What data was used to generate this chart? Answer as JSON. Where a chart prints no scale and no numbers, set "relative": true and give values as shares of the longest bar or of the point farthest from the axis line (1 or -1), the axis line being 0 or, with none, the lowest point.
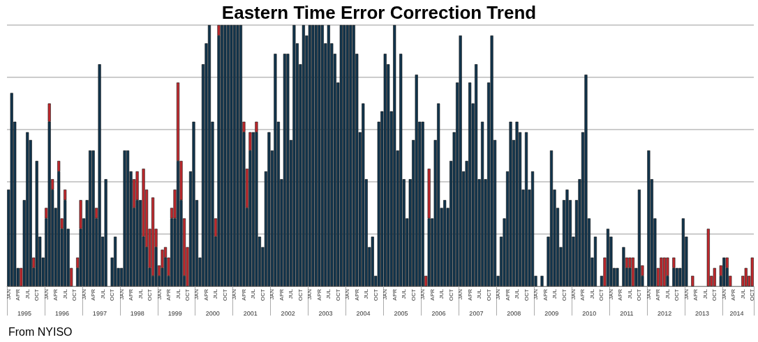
{
  "chart_data": {
    "type": "bar",
    "title": "Eastern Time Error Correction Trend",
    "relative": true,
    "stacked": true,
    "grid": "y",
    "annotations": [
      "From NYISO",
      "1995",
      "1996",
      "1997",
      "1998",
      "1999",
      "2000",
      "2001",
      "2002",
      "2003",
      "2004",
      "2005",
      "2006",
      "2007",
      "2008",
      "2009",
      "2010",
      "2011",
      "2012",
      "2013",
      "2014"
    ],
    "categories": [
      "JAN",
      null,
      null,
      "APR",
      null,
      null,
      "JUL",
      null,
      null,
      "OCT",
      null,
      null,
      "JAN",
      null,
      null,
      "APR",
      null,
      null,
      "JUL",
      null,
      null,
      "OCT",
      null,
      null,
      "JAN",
      null,
      null,
      "APR",
      null,
      null,
      "JUL",
      null,
      null,
      "OCT",
      null,
      null,
      "JAN",
      null,
      null,
      "APR",
      null,
      null,
      "JUL",
      null,
      null,
      "OCT",
      null,
      null,
      "JAN",
      null,
      null,
      "APR",
      null,
      null,
      "JUL",
      null,
      null,
      "OCT",
      null,
      null,
      "JAN",
      null,
      null,
      "APR",
      null,
      null,
      "JUL",
      null,
      null,
      "OCT",
      null,
      null,
      "JAN",
      null,
      null,
      "APR",
      null,
      null,
      "JUL",
      null,
      null,
      "OCT",
      null,
      null,
      "JAN",
      null,
      null,
      "APR",
      null,
      null,
      "JUL",
      null,
      null,
      "OCT",
      null,
      null,
      "JAN",
      null,
      null,
      "APR",
      null,
      null,
      "JUL",
      null,
      null,
      "OCT",
      null,
      null,
      "JAN",
      null,
      null,
      "APR",
      null,
      null,
      "JUL",
      null,
      null,
      "OCT",
      null,
      null,
      "JAN",
      null,
      null,
      "APR",
      null,
      null,
      "JUL",
      null,
      null,
      "OCT",
      null,
      null,
      "JAN",
      null,
      null,
      "APR",
      null,
      null,
      "JUL",
      null,
      null,
      "OCT",
      null,
      null,
      "JAN",
      null,
      null,
      "APR",
      null,
      null,
      "JUL",
      null,
      null,
      "OCT",
      null,
      null,
      "JAN",
      null,
      null,
      "APR",
      null,
      null,
      "JUL",
      null,
      null,
      "OCT",
      null,
      null,
      "JAN",
      null,
      null,
      "APR",
      null,
      null,
      "JUL",
      null,
      null,
      "OCT",
      null,
      null,
      "JAN",
      null,
      null,
      "APR",
      null,
      null,
      "JUL",
      null,
      null,
      "OCT",
      null,
      null,
      "JAN",
      null,
      null,
      "APR",
      null,
      null,
      "JUL",
      null,
      null,
      "OCT",
      null,
      null,
      "JAN",
      null,
      null,
      "APR",
      null,
      null,
      "JUL",
      null,
      null,
      "OCT",
      null,
      null,
      "JAN",
      null,
      null,
      "APR",
      null,
      null,
      "JUL",
      null,
      null,
      "OCT",
      null,
      null,
      "JAN",
      null,
      null,
      "APR",
      null,
      null,
      "JUL",
      null,
      null,
      "OCT"
    ],
    "series": [
      {
        "color": "#12354d",
        "values": [
          0.37,
          0.74,
          0.63,
          0.07,
          0,
          0.33,
          0.59,
          0.56,
          0.07,
          0.48,
          0.19,
          0.11,
          0.26,
          0.63,
          0.37,
          0.3,
          0.44,
          0.22,
          0.33,
          0.22,
          0,
          0,
          0.07,
          0.22,
          0.26,
          0.33,
          0.52,
          0.52,
          0.26,
          0.85,
          0.19,
          0.41,
          0,
          0.11,
          0.19,
          0.07,
          0.07,
          0.52,
          0.52,
          0.44,
          0.3,
          0.33,
          0.33,
          0.19,
          0.15,
          0.07,
          0.04,
          0.15,
          0.04,
          0.07,
          0.11,
          0.04,
          0.26,
          0.26,
          0.48,
          0.33,
          0.04,
          0,
          0.44,
          0.63,
          0.33,
          0.11,
          0.85,
          0.93,
          1,
          0.63,
          0.19,
          0.96,
          1,
          1,
          1,
          1,
          1,
          1,
          1,
          0.59,
          0.3,
          0.52,
          0.59,
          0.59,
          0.19,
          0.15,
          0.44,
          0.59,
          0.52,
          0.89,
          0.63,
          0.41,
          0.89,
          0.89,
          0.56,
          1,
          0.93,
          0.85,
          1,
          0.96,
          1,
          1,
          1,
          1,
          1,
          0.93,
          1,
          0.93,
          0.89,
          0.78,
          1,
          1,
          1,
          1,
          1,
          0.89,
          0.59,
          0.7,
          0.41,
          0.15,
          0.19,
          0.04,
          0.63,
          0.67,
          0.89,
          0.85,
          0.67,
          1,
          0.52,
          0.89,
          0.41,
          0.26,
          0.41,
          0.56,
          0.81,
          0.63,
          0.63,
          0,
          0.26,
          0.26,
          0.56,
          0.7,
          0.3,
          0.33,
          0.3,
          0.48,
          0.59,
          0.78,
          0.96,
          0.44,
          0.48,
          0.78,
          0.7,
          0.85,
          0.41,
          0.63,
          0.41,
          0.78,
          0.96,
          0.56,
          0.04,
          0.19,
          0.26,
          0.44,
          0.63,
          0.56,
          0.63,
          0.59,
          0.37,
          0.59,
          0.37,
          0.44,
          0.04,
          0,
          0.04,
          0,
          0.19,
          0.52,
          0.37,
          0.3,
          0.15,
          0.33,
          0.37,
          0.33,
          0.19,
          0.33,
          0.41,
          0.59,
          0.81,
          0.26,
          0.11,
          0.19,
          0,
          0.04,
          0,
          0.22,
          0.19,
          0.07,
          0.07,
          0,
          0.15,
          0.07,
          0.07,
          0,
          0.07,
          0.37,
          0.04,
          0,
          0.52,
          0.41,
          0.26,
          0,
          0,
          0,
          0.04,
          0,
          0.07,
          0.07,
          0.07,
          0.26,
          0.19,
          0,
          0,
          0,
          0,
          0,
          0,
          0,
          0,
          0,
          0,
          0.04,
          0.11,
          0.07,
          0,
          0,
          0,
          0,
          0,
          0,
          0,
          0
        ]
      },
      {
        "color": "#c0282d",
        "values": [
          0,
          0,
          0,
          0,
          0.07,
          0,
          0,
          0,
          0.04,
          0,
          0,
          0,
          0.04,
          0.07,
          0.04,
          0,
          0.04,
          0.04,
          0.04,
          0,
          0.07,
          0,
          0.04,
          0.11,
          0,
          0,
          0,
          0,
          0.04,
          0,
          0,
          0,
          0,
          0,
          0,
          0,
          0,
          0,
          0,
          0,
          0.11,
          0.11,
          0,
          0.26,
          0.22,
          0.15,
          0.3,
          0.07,
          0.04,
          0.07,
          0.04,
          0.07,
          0.04,
          0.11,
          0.3,
          0.15,
          0.22,
          0.15,
          0,
          0,
          0,
          0,
          0,
          0,
          0,
          0,
          0.07,
          0.04,
          0,
          0,
          0,
          0,
          0,
          0,
          0,
          0.04,
          0.15,
          0.07,
          0,
          0.04,
          0,
          0,
          0,
          0,
          0,
          0,
          0,
          0,
          0,
          0,
          0,
          0,
          0,
          0,
          0,
          0,
          0,
          0,
          0,
          0,
          0,
          0,
          0,
          0,
          0,
          0,
          0,
          0,
          0,
          0,
          0,
          0,
          0,
          0,
          0,
          0,
          0,
          0,
          0,
          0,
          0,
          0,
          0,
          0,
          0,
          0,
          0,
          0,
          0,
          0,
          0,
          0,
          0,
          0.04,
          0.19,
          0,
          0,
          0,
          0,
          0,
          0,
          0,
          0,
          0,
          0,
          0,
          0,
          0,
          0,
          0,
          0,
          0,
          0,
          0,
          0,
          0,
          0,
          0,
          0,
          0,
          0,
          0,
          0,
          0,
          0,
          0,
          0,
          0,
          0,
          0,
          0,
          0,
          0,
          0,
          0,
          0,
          0,
          0,
          0,
          0,
          0,
          0,
          0,
          0,
          0,
          0,
          0,
          0,
          0,
          0,
          0.11,
          0,
          0,
          0,
          0,
          0,
          0,
          0.04,
          0.04,
          0.11,
          0,
          0,
          0.04,
          0,
          0,
          0,
          0,
          0.07,
          0.11,
          0.11,
          0.07,
          0,
          0.04,
          0,
          0,
          0,
          0,
          0,
          0.04,
          0,
          0,
          0,
          0,
          0.22,
          0.04,
          0.07,
          0,
          0.04,
          0,
          0.04,
          0.04,
          0,
          0,
          0,
          0.04,
          0.07,
          0.04,
          0.11
        ]
      }
    ]
  }
}
